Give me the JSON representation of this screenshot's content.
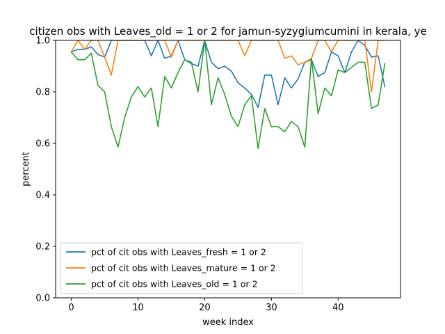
{
  "chart_data": {
    "type": "line",
    "title": "citizen obs with Leaves_old = 1 or 2 for jamun-syzygiumcumini in kerala, ye",
    "xlabel": "week index",
    "ylabel": "percent",
    "xlim": [
      -2.35,
      49.35
    ],
    "ylim": [
      0.0,
      1.0
    ],
    "xticks": [
      0,
      10,
      20,
      30,
      40
    ],
    "yticks": [
      0.0,
      0.2,
      0.4,
      0.6,
      0.8,
      1.0
    ],
    "xtick_labels": [
      "0",
      "10",
      "20",
      "30",
      "40"
    ],
    "ytick_labels": [
      "0.0",
      "0.2",
      "0.4",
      "0.6",
      "0.8",
      "1.0"
    ],
    "grid": false,
    "legend_position": "lower-left",
    "x": [
      0,
      1,
      2,
      3,
      4,
      5,
      6,
      7,
      8,
      9,
      10,
      11,
      12,
      13,
      14,
      15,
      16,
      17,
      18,
      19,
      20,
      21,
      22,
      23,
      24,
      25,
      26,
      27,
      28,
      29,
      30,
      31,
      32,
      33,
      34,
      35,
      36,
      37,
      38,
      39,
      40,
      41,
      42,
      43,
      44,
      45,
      46,
      47
    ],
    "series": [
      {
        "name": "pct of cit obs with Leaves_fresh = 1 or 2",
        "color": "#1f77b4",
        "values": [
          0.955,
          0.965,
          0.965,
          0.975,
          0.945,
          0.935,
          1.0,
          1.0,
          1.0,
          1.0,
          1.0,
          1.0,
          0.94,
          1.0,
          0.93,
          0.94,
          1.0,
          0.925,
          0.91,
          0.9,
          1.0,
          0.915,
          0.89,
          0.9,
          0.88,
          0.835,
          0.815,
          0.79,
          0.74,
          0.865,
          0.865,
          0.75,
          0.855,
          0.815,
          0.85,
          0.915,
          0.925,
          0.86,
          0.875,
          0.955,
          0.94,
          0.875,
          0.955,
          1.0,
          0.98,
          0.935,
          0.94,
          0.82
        ]
      },
      {
        "name": "pct of cit obs with Leaves_mature = 1 or 2",
        "color": "#ff7f0e",
        "values": [
          0.955,
          1.0,
          0.965,
          1.0,
          1.0,
          0.935,
          0.865,
          1.0,
          1.0,
          1.0,
          1.0,
          1.0,
          1.0,
          1.0,
          1.0,
          0.935,
          1.0,
          1.0,
          1.0,
          1.0,
          1.0,
          1.0,
          1.0,
          1.0,
          1.0,
          1.0,
          0.94,
          1.0,
          1.0,
          1.0,
          1.0,
          1.0,
          0.93,
          0.94,
          0.905,
          0.915,
          0.93,
          1.0,
          1.0,
          0.955,
          1.0,
          1.0,
          1.0,
          1.0,
          1.0,
          0.8,
          1.0,
          1.0
        ]
      },
      {
        "name": "pct of cit obs with Leaves_old = 1 or 2",
        "color": "#2ca02c",
        "values": [
          0.955,
          0.925,
          0.925,
          0.95,
          0.825,
          0.8,
          0.665,
          0.585,
          0.7,
          0.78,
          0.82,
          0.78,
          0.815,
          0.665,
          0.86,
          0.815,
          0.875,
          0.925,
          0.915,
          0.8,
          1.0,
          0.75,
          0.855,
          0.79,
          0.705,
          0.665,
          0.75,
          0.785,
          0.58,
          0.735,
          0.665,
          0.665,
          0.645,
          0.685,
          0.665,
          0.585,
          0.93,
          0.715,
          0.815,
          0.785,
          0.885,
          0.875,
          0.895,
          0.915,
          0.915,
          0.735,
          0.75,
          0.91
        ]
      }
    ]
  }
}
